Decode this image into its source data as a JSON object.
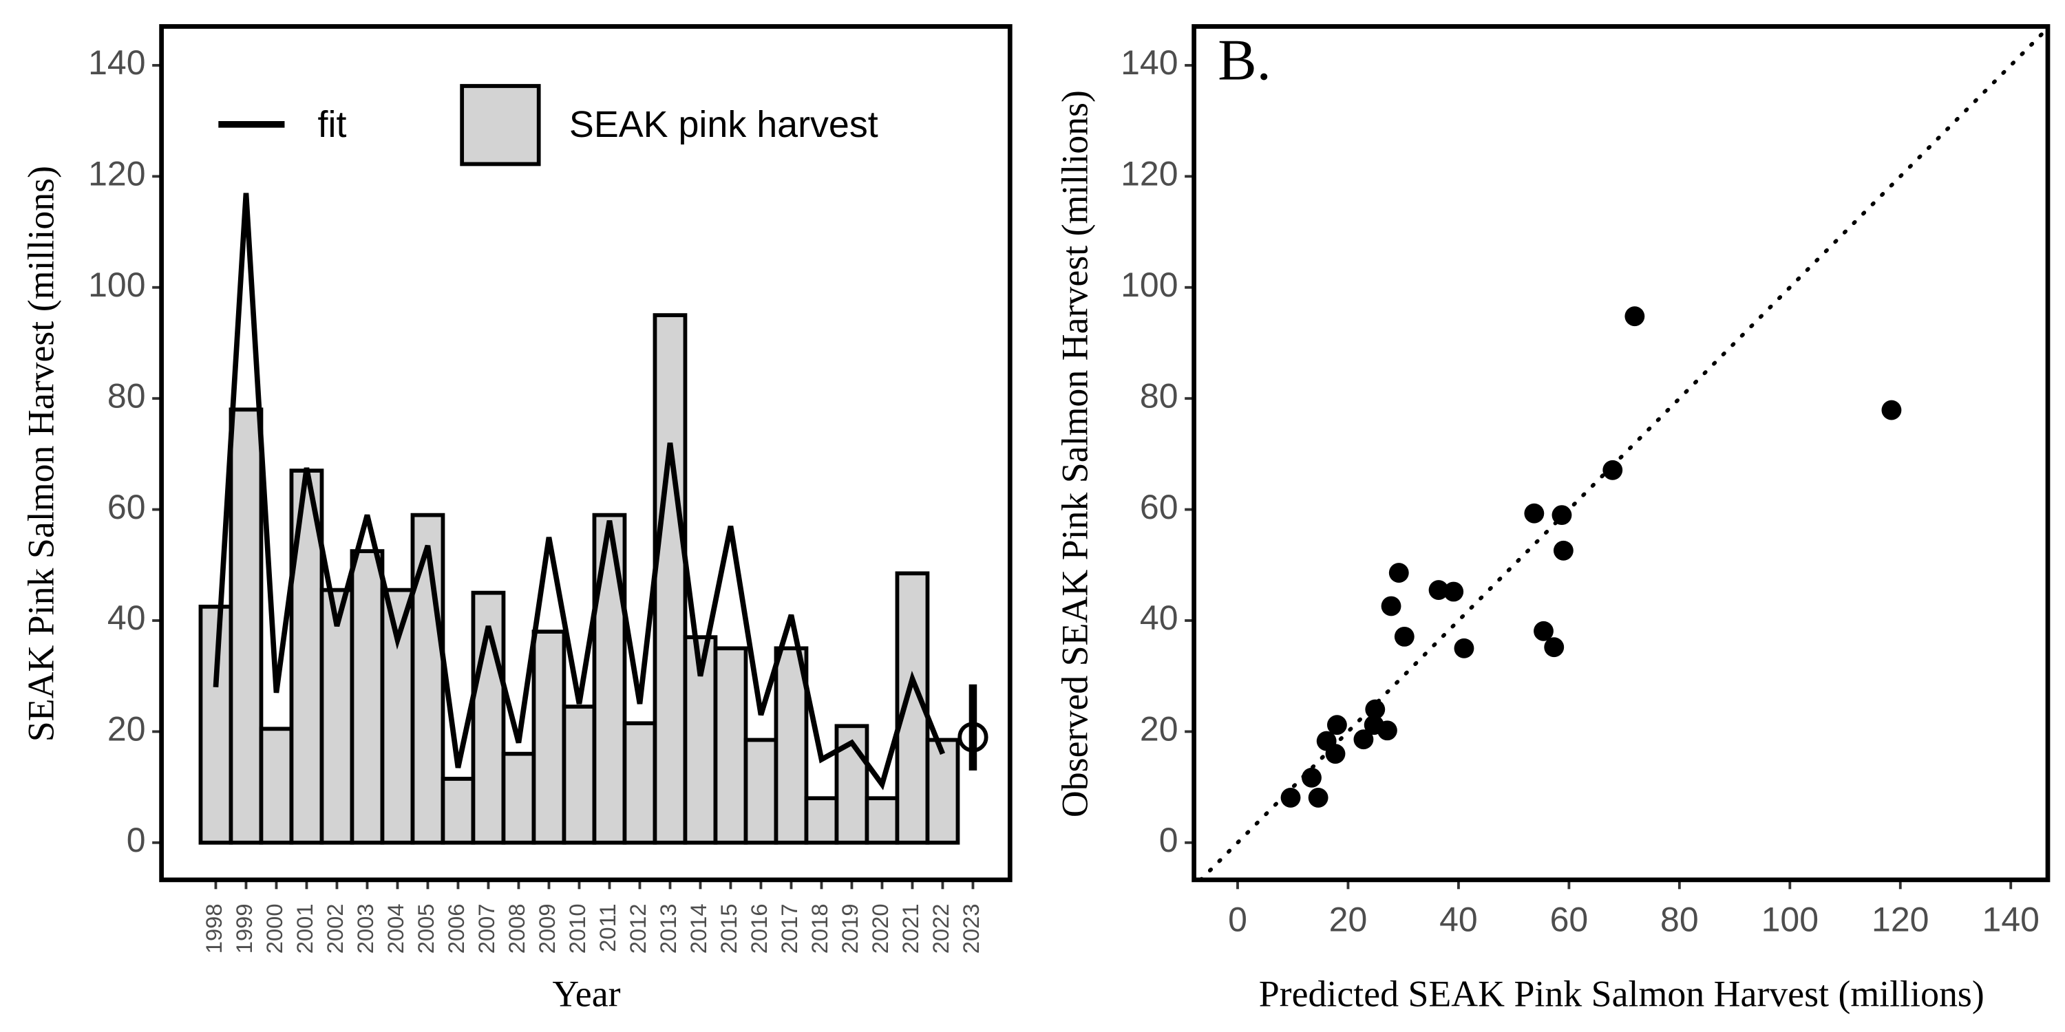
{
  "chart_data": [
    {
      "type": "bar-line",
      "y_label": "SEAK Pink Salmon Harvest (millions)",
      "x_label": "Year",
      "categories": [
        "1998",
        "1999",
        "2000",
        "2001",
        "2002",
        "2003",
        "2004",
        "2005",
        "2006",
        "2007",
        "2008",
        "2009",
        "2010",
        "2011",
        "2012",
        "2013",
        "2014",
        "2015",
        "2016",
        "2017",
        "2018",
        "2019",
        "2020",
        "2021",
        "2022",
        "2023"
      ],
      "series": [
        {
          "name": "SEAK pink harvest",
          "color": "#d3d3d3",
          "values": [
            42.5,
            78,
            20.5,
            67,
            45.5,
            52.5,
            45.5,
            59,
            11.5,
            45,
            16,
            38,
            24.5,
            59,
            21.5,
            95,
            37,
            35,
            18.5,
            35,
            8,
            21,
            8,
            48.5,
            18.5,
            null
          ]
        },
        {
          "name": "fit",
          "color": "#000000",
          "values": [
            28,
            117,
            27,
            67.5,
            39,
            59,
            36.5,
            53.5,
            13.5,
            39,
            18,
            55,
            25,
            58,
            25,
            72,
            30,
            57,
            23,
            41,
            15,
            18,
            10.5,
            29.5,
            16,
            null
          ]
        }
      ],
      "forecast_category": "2023",
      "forecast_value": 19,
      "forecast_low": 13,
      "forecast_high": 28.5,
      "ylim": [
        -6.7,
        147
      ],
      "yticks": [
        0,
        20,
        40,
        60,
        80,
        100,
        120,
        140
      ]
    },
    {
      "type": "scatter",
      "annotation": "B.",
      "x_label": "Predicted SEAK Pink Salmon Harvest (millions)",
      "y_label": "Observed SEAK Pink Salmon Harvest (millions)",
      "color": "#000000",
      "x": [
        9.6,
        13.4,
        14.6,
        16.1,
        18,
        17.7,
        22.8,
        24.9,
        24.7,
        27.1,
        27.8,
        29.2,
        30.2,
        36.4,
        39.1,
        41,
        53.7,
        55.4,
        57.3,
        58.7,
        59,
        67.9,
        71.9,
        118.4
      ],
      "values": [
        8.1,
        11.7,
        8.1,
        18.3,
        21.2,
        16,
        18.6,
        24,
        21.2,
        20.2,
        42.6,
        48.6,
        37.1,
        45.5,
        45.2,
        35,
        59.3,
        38.1,
        35.2,
        59,
        52.6,
        67.1,
        94.8,
        77.9
      ],
      "xlim": [
        -7.9,
        146.7
      ],
      "ylim": [
        -6.7,
        147
      ],
      "xticks": [
        0,
        20,
        40,
        60,
        80,
        100,
        120,
        140
      ],
      "yticks": [
        0,
        20,
        40,
        60,
        80,
        100,
        120,
        140
      ]
    }
  ]
}
